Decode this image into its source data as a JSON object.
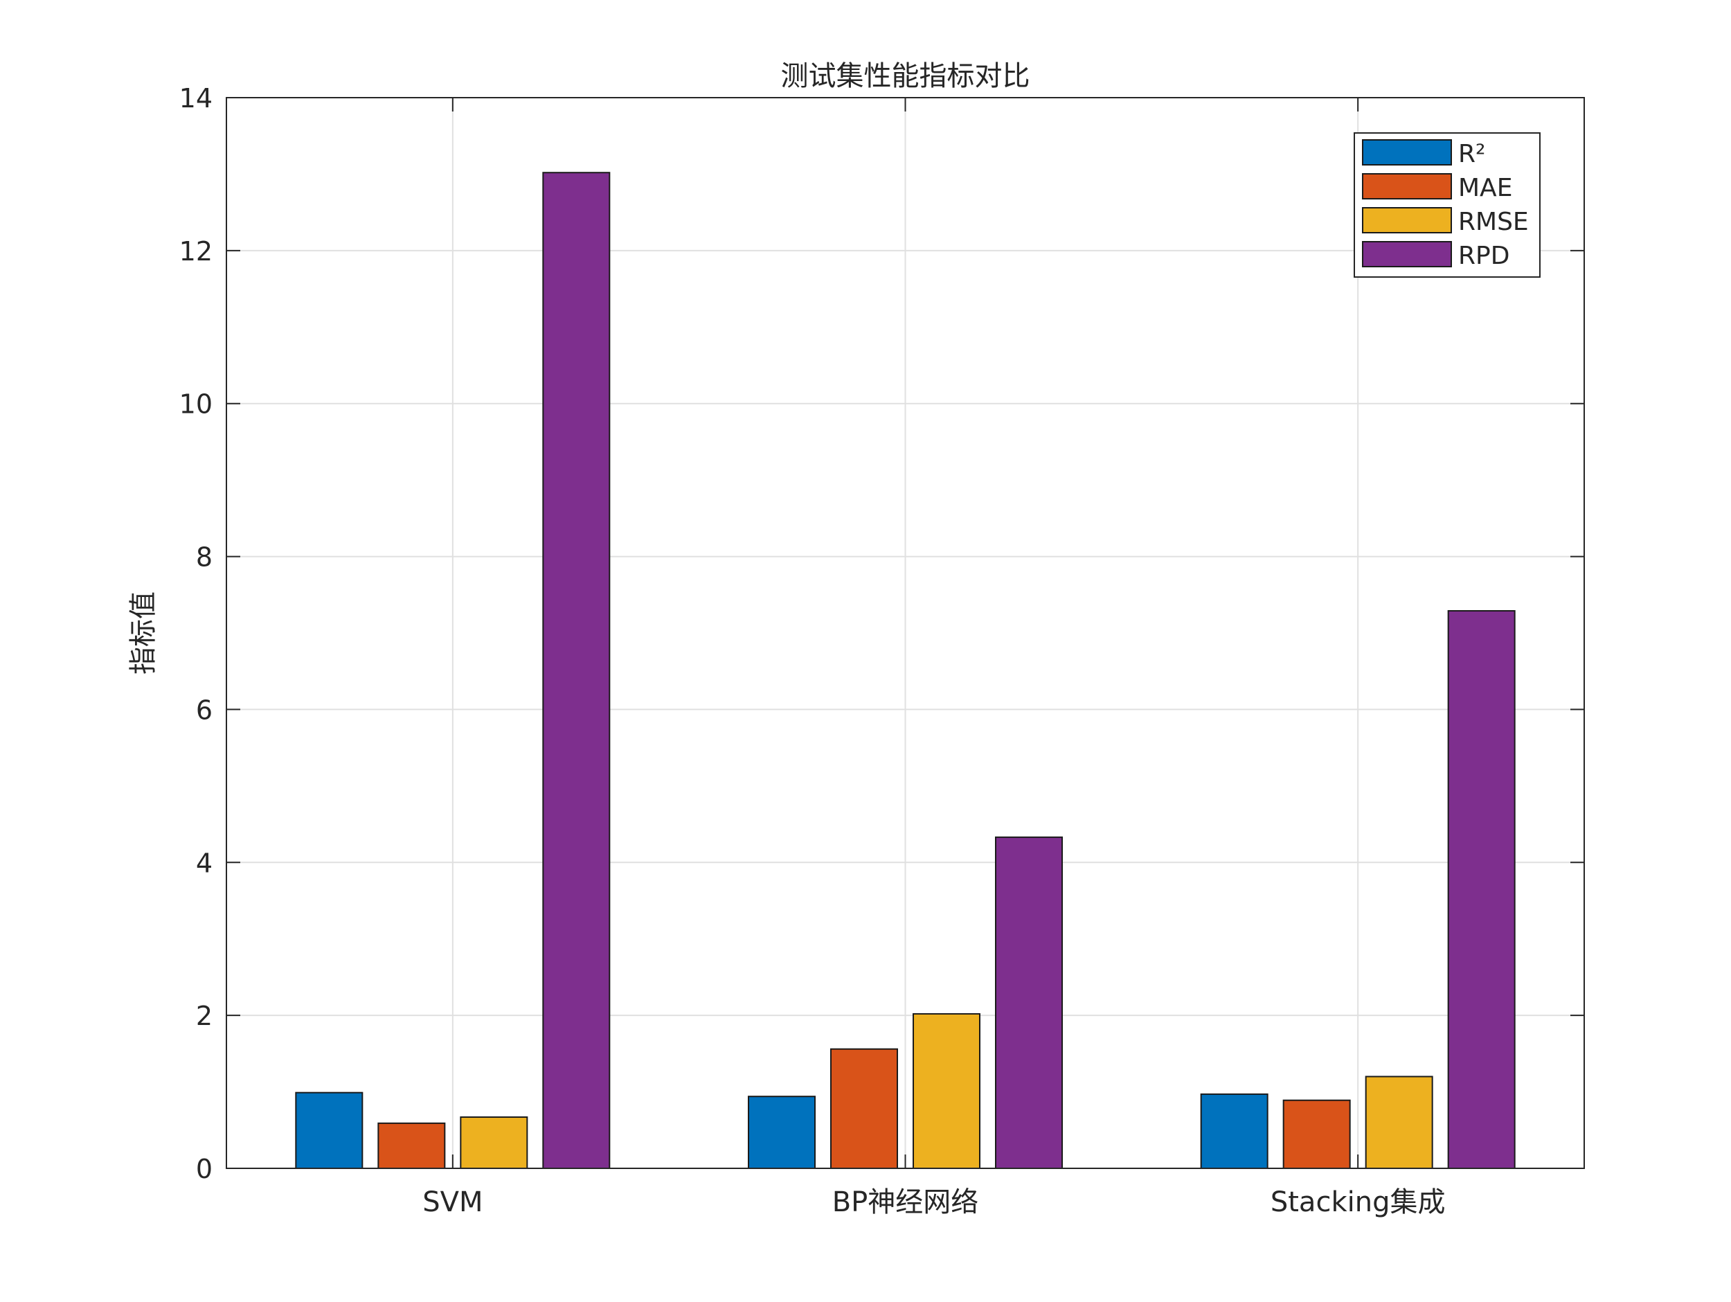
{
  "chart_data": {
    "type": "bar",
    "title": "测试集性能指标对比",
    "xlabel": "",
    "ylabel": "指标值",
    "categories": [
      "SVM",
      "BP神经网络",
      "Stacking集成"
    ],
    "series": [
      {
        "name": "R²",
        "color": "#0072BD",
        "values": [
          0.99,
          0.94,
          0.97
        ]
      },
      {
        "name": "MAE",
        "color": "#D95319",
        "values": [
          0.59,
          1.56,
          0.89
        ]
      },
      {
        "name": "RMSE",
        "color": "#EDB120",
        "values": [
          0.67,
          2.02,
          1.2
        ]
      },
      {
        "name": "RPD",
        "color": "#7E2F8E",
        "values": [
          13.02,
          4.33,
          7.29
        ]
      }
    ],
    "ylim": [
      0,
      14
    ],
    "yticks": [
      0,
      2,
      4,
      6,
      8,
      10,
      12,
      14
    ],
    "grid": true,
    "legend_position": "top-right"
  }
}
